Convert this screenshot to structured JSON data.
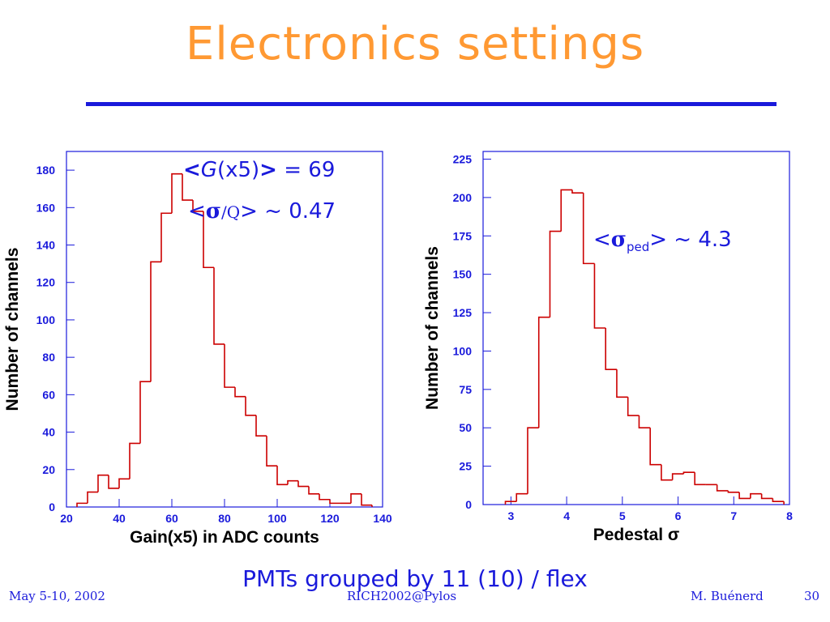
{
  "slide": {
    "title": "Electronics settings",
    "caption": "PMTs grouped by 11 (10) / flex",
    "footer": {
      "date": "May 5-10, 2002",
      "center": "RICH2002@Pylos",
      "author": "M. Buénerd",
      "page": "30"
    },
    "annotations": {
      "gain_open": "<",
      "gain_G": "G",
      "gain_x5": "(x5)",
      "gain_close": ">",
      "gain_value": " = 69",
      "res_open": "<",
      "res_sigma": "σ",
      "res_Q": "/Q",
      "res_value": "> ~ 0.47",
      "ped_open": "<",
      "ped_sigma": "σ",
      "ped_sub": "ped",
      "ped_value": "> ~ 4.3"
    }
  },
  "colors": {
    "title": "#ff9933",
    "text": "#1a1adb",
    "hist": "#cc0000",
    "frame": "#1a1adb"
  },
  "chart_data": [
    {
      "type": "bar",
      "style": "step-histogram",
      "xlabel": "Gain(x5) in ADC counts",
      "ylabel": "Number of channels",
      "xlim": [
        20,
        140
      ],
      "ylim": [
        0,
        190
      ],
      "xticks": [
        20,
        40,
        60,
        80,
        100,
        120,
        140
      ],
      "yticks": [
        0,
        20,
        40,
        60,
        80,
        100,
        120,
        140,
        160,
        180
      ],
      "bin_edges": [
        24,
        28,
        32,
        36,
        40,
        44,
        48,
        52,
        56,
        60,
        64,
        68,
        72,
        76,
        80,
        84,
        88,
        92,
        96,
        100,
        104,
        108,
        112,
        116,
        120,
        124,
        128,
        132,
        136
      ],
      "values": [
        2,
        8,
        17,
        10,
        15,
        34,
        67,
        131,
        157,
        178,
        164,
        158,
        128,
        87,
        64,
        59,
        49,
        38,
        22,
        12,
        14,
        11,
        7,
        4,
        2,
        2,
        7,
        1
      ]
    },
    {
      "type": "bar",
      "style": "step-histogram",
      "xlabel": "Pedestal σ",
      "ylabel": "Number of channels",
      "xlim": [
        2.5,
        8
      ],
      "ylim": [
        0,
        230
      ],
      "xticks": [
        3,
        4,
        5,
        6,
        7,
        8
      ],
      "yticks": [
        0,
        25,
        50,
        75,
        100,
        125,
        150,
        175,
        200,
        225
      ],
      "bin_edges": [
        2.9,
        3.1,
        3.3,
        3.5,
        3.7,
        3.9,
        4.1,
        4.3,
        4.5,
        4.7,
        4.9,
        5.1,
        5.3,
        5.5,
        5.7,
        5.9,
        6.1,
        6.3,
        6.5,
        6.7,
        6.9,
        7.1,
        7.3,
        7.5,
        7.7,
        7.9
      ],
      "values": [
        2,
        7,
        50,
        122,
        178,
        205,
        203,
        157,
        115,
        88,
        70,
        58,
        50,
        26,
        16,
        20,
        21,
        13,
        13,
        9,
        8,
        4,
        7,
        4,
        2
      ]
    }
  ]
}
